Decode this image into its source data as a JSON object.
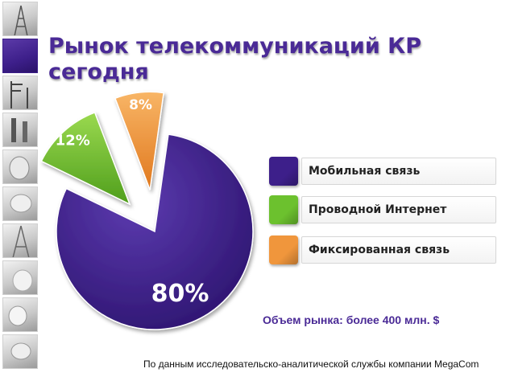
{
  "title_line1": "Рынок телекоммуникаций КР",
  "title_line2": "сегодня",
  "chart_data": {
    "type": "pie",
    "title": "Рынок телекоммуникаций КР сегодня",
    "slices": [
      {
        "label": "Мобильная связь",
        "value": 80,
        "display": "80%",
        "color": "#3d1f8a"
      },
      {
        "label": "Проводной Интернет",
        "value": 12,
        "display": "12%",
        "color": "#6cc12e"
      },
      {
        "label": "Фиксированная связь",
        "value": 8,
        "display": "8%",
        "color": "#f0963c"
      }
    ],
    "legend_position": "right"
  },
  "market_note": "Объем рынка: более 400 млн. $",
  "source_note": "По данным исследовательско-аналитической службы компании MegaCom"
}
